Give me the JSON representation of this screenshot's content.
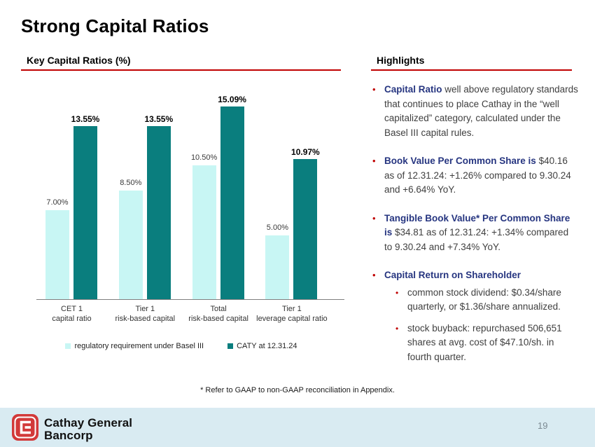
{
  "slide": {
    "title": "Strong Capital Ratios",
    "page_number": "19"
  },
  "colors": {
    "accent_red": "#C00000",
    "navy_lead": "#263580",
    "body_text": "#3F3F3F",
    "teal_bar": "#0A7E7E",
    "light_cyan_bar": "#C8F6F4",
    "footer_band": "#D9EBF2"
  },
  "chart_section": {
    "heading": "Key Capital Ratios (%)"
  },
  "chart_data": {
    "type": "bar",
    "title": "Key Capital Ratios (%)",
    "xlabel": "",
    "ylabel": "",
    "ylim": [
      0,
      16.5
    ],
    "grid": false,
    "legend_position": "bottom",
    "categories": [
      {
        "line1": "CET 1",
        "line2": "capital ratio"
      },
      {
        "line1": "Tier 1",
        "line2": "risk-based capital"
      },
      {
        "line1": "Total",
        "line2": "risk-based capital"
      },
      {
        "line1": "Tier 1",
        "line2": "leverage capital ratio"
      }
    ],
    "series": [
      {
        "name": "regulatory requirement under Basel III",
        "color": "#C8F6F4",
        "values": [
          7.0,
          8.5,
          10.5,
          5.0
        ],
        "labels": [
          "7.00%",
          "8.50%",
          "10.50%",
          "5.00%"
        ],
        "label_style": "regular"
      },
      {
        "name": "CATY at 12.31.24",
        "color": "#0A7E7E",
        "values": [
          13.55,
          13.55,
          15.09,
          10.97
        ],
        "labels": [
          "13.55%",
          "13.55%",
          "15.09%",
          "10.97%"
        ],
        "label_style": "bold"
      }
    ]
  },
  "highlights": {
    "heading": "Highlights",
    "bullets": [
      {
        "lead": "Capital Ratio",
        "rest": " well above regulatory standards that continues to place Cathay in the “well capitalized” category, calculated under the Basel III capital rules."
      },
      {
        "lead": "Book Value Per Common Share is",
        "rest": " $40.16 as of 12.31.24: +1.26% compared to 9.30.24 and +6.64% YoY."
      },
      {
        "lead": "Tangible Book Value* Per Common Share is",
        "rest": " $34.81 as of 12.31.24: +1.34% compared to 9.30.24 and +7.34% YoY."
      },
      {
        "lead": "Capital Return on Shareholder",
        "rest": "",
        "sub": [
          "common stock dividend: $0.34/share quarterly, or $1.36/share annualized.",
          "stock buyback: repurchased 506,651 shares at avg. cost of $47.10/sh. in fourth quarter."
        ]
      }
    ]
  },
  "footnote": "* Refer to GAAP to non-GAAP reconciliation in Appendix.",
  "footer": {
    "logo_icon": "cathay-c-logo",
    "logo_line1": "Cathay General",
    "logo_line2": "Bancorp"
  }
}
